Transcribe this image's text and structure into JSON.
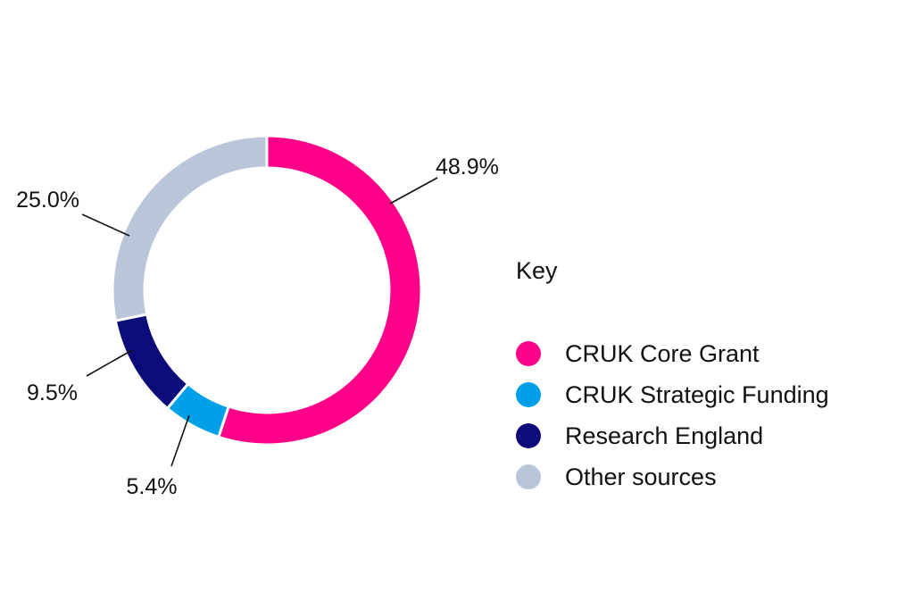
{
  "chart_data": {
    "type": "pie",
    "subtype": "donut",
    "title": "",
    "legend_title": "Key",
    "legend_position": "right",
    "slices": [
      {
        "name": "CRUK Core Grant",
        "value": 48.9,
        "label": "48.9%",
        "color": "#ff0088"
      },
      {
        "name": "CRUK Strategic Funding",
        "value": 5.4,
        "label": "5.4%",
        "color": "#00a0e9"
      },
      {
        "name": "Research England",
        "value": 9.5,
        "label": "9.5%",
        "color": "#0b0b7a"
      },
      {
        "name": "Other sources",
        "value": 25.0,
        "label": "25.0%",
        "color": "#bac6d8"
      }
    ]
  }
}
